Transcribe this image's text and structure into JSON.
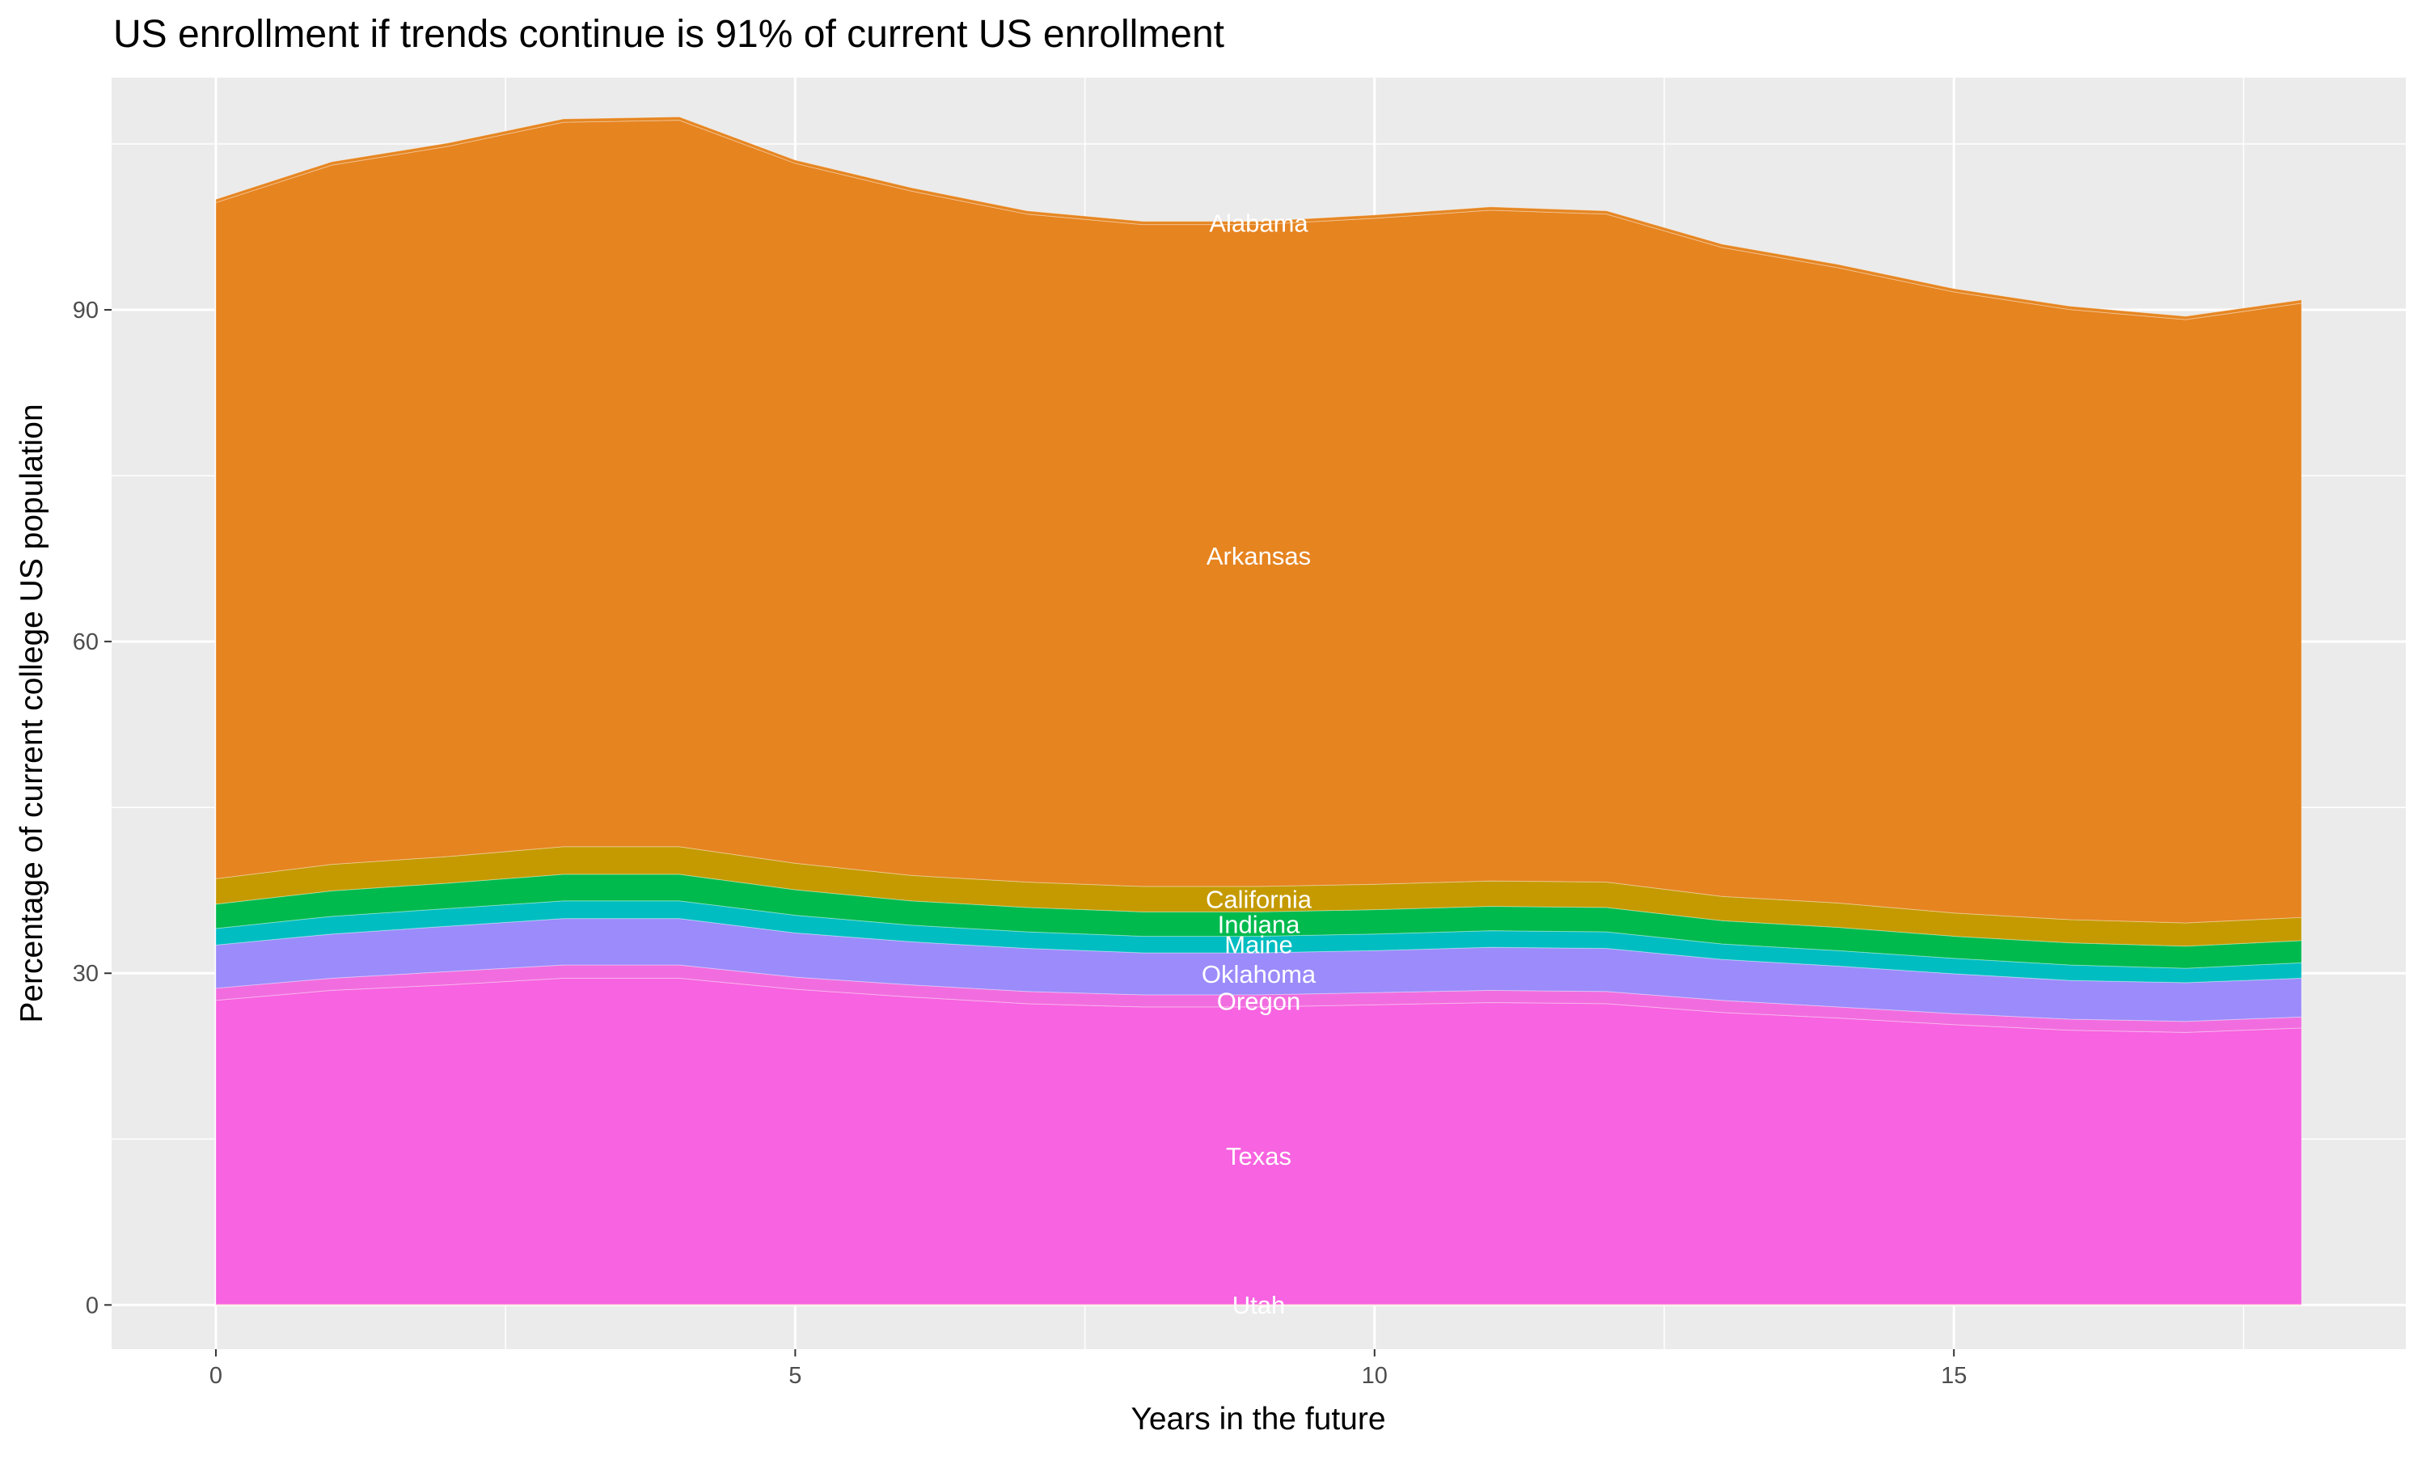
{
  "chart_data": {
    "type": "area",
    "stacked": true,
    "title": "US enrollment if trends continue is 91% of current US enrollment",
    "xlabel": "Years in the future",
    "ylabel": "Percentage of current college US population",
    "xlim": [
      -0.9,
      18.9
    ],
    "ylim": [
      -4,
      111
    ],
    "x_ticks": [
      0,
      5,
      10,
      15
    ],
    "y_ticks": [
      0,
      30,
      60,
      90
    ],
    "grid": true,
    "legend": "none (direct labels)",
    "label_x": 9,
    "x": [
      0,
      1,
      2,
      3,
      4,
      5,
      6,
      7,
      8,
      9,
      10,
      11,
      12,
      13,
      14,
      15,
      16,
      17,
      18
    ],
    "series": [
      {
        "name": "Utah",
        "color": "#F8766D",
        "values": [
          0.05,
          0.05,
          0.05,
          0.05,
          0.05,
          0.05,
          0.05,
          0.05,
          0.05,
          0.05,
          0.05,
          0.05,
          0.05,
          0.05,
          0.05,
          0.05,
          0.05,
          0.05,
          0.05
        ]
      },
      {
        "name": "Texas",
        "color": "#F763E0",
        "values": [
          27.5,
          28.4,
          28.9,
          29.5,
          29.5,
          28.5,
          27.8,
          27.2,
          26.9,
          26.9,
          27.1,
          27.3,
          27.2,
          26.4,
          25.9,
          25.3,
          24.8,
          24.6,
          25.0
        ]
      },
      {
        "name": "Oregon",
        "color": "#F16DDF",
        "values": [
          1.1,
          1.1,
          1.2,
          1.2,
          1.2,
          1.1,
          1.1,
          1.1,
          1.1,
          1.1,
          1.1,
          1.1,
          1.1,
          1.1,
          1.0,
          1.0,
          1.0,
          1.0,
          1.0
        ]
      },
      {
        "name": "Oklahoma",
        "color": "#9B8BFB",
        "values": [
          3.9,
          4.0,
          4.1,
          4.2,
          4.2,
          4.0,
          3.9,
          3.9,
          3.8,
          3.8,
          3.8,
          3.9,
          3.9,
          3.7,
          3.7,
          3.6,
          3.5,
          3.5,
          3.5
        ]
      },
      {
        "name": "Maine",
        "color": "#00BDC2",
        "values": [
          1.5,
          1.6,
          1.6,
          1.6,
          1.6,
          1.6,
          1.5,
          1.5,
          1.5,
          1.5,
          1.5,
          1.5,
          1.5,
          1.4,
          1.4,
          1.4,
          1.4,
          1.3,
          1.4
        ]
      },
      {
        "name": "Indiana",
        "color": "#00BA4E",
        "values": [
          2.2,
          2.3,
          2.3,
          2.4,
          2.4,
          2.3,
          2.2,
          2.2,
          2.2,
          2.2,
          2.2,
          2.2,
          2.2,
          2.1,
          2.1,
          2.0,
          2.0,
          2.0,
          2.0
        ]
      },
      {
        "name": "California",
        "color": "#C49A00",
        "values": [
          2.3,
          2.4,
          2.4,
          2.5,
          2.5,
          2.4,
          2.3,
          2.3,
          2.3,
          2.3,
          2.3,
          2.3,
          2.3,
          2.2,
          2.2,
          2.1,
          2.1,
          2.1,
          2.1
        ]
      },
      {
        "name": "Arkansas",
        "color": "#E68420",
        "values": [
          61.15,
          63.24,
          64.23,
          65.52,
          65.7,
          63.3,
          61.9,
          60.41,
          59.86,
          59.86,
          60.23,
          60.66,
          60.41,
          58.69,
          57.46,
          56.17,
          55.18,
          54.57,
          55.55
        ]
      },
      {
        "name": "Alabama",
        "color": "#E68622",
        "values": [
          0.3,
          0.3,
          0.3,
          0.3,
          0.3,
          0.3,
          0.3,
          0.3,
          0.3,
          0.3,
          0.3,
          0.3,
          0.3,
          0.3,
          0.3,
          0.3,
          0.3,
          0.3,
          0.3
        ]
      }
    ]
  }
}
